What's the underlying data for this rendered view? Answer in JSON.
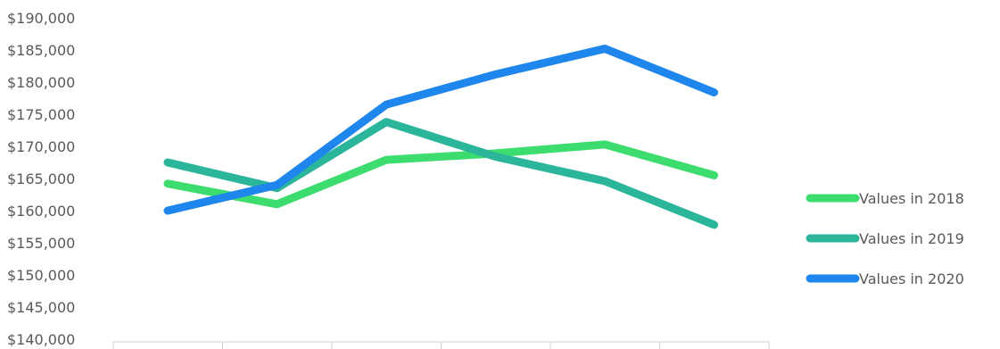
{
  "chart_data": {
    "type": "line",
    "title": "",
    "xlabel": "",
    "ylabel": "",
    "ylim": [
      140000,
      190000
    ],
    "ytick_step": 5000,
    "ytick_labels": [
      "$140,000",
      "$145,000",
      "$150,000",
      "$155,000",
      "$160,000",
      "$165,000",
      "$170,000",
      "$175,000",
      "$180,000",
      "$185,000",
      "$190,000"
    ],
    "categories": [
      "",
      "",
      "",
      "",
      "",
      ""
    ],
    "series": [
      {
        "name": "Values in 2018",
        "color": "#3ddc6e",
        "values": [
          164200,
          161000,
          167900,
          168900,
          170300,
          165500
        ]
      },
      {
        "name": "Values in 2019",
        "color": "#2bb59a",
        "values": [
          167500,
          163500,
          173800,
          168400,
          164600,
          157800
        ]
      },
      {
        "name": "Values in 2020",
        "color": "#1e86ec",
        "values": [
          160000,
          164000,
          176500,
          181200,
          185200,
          178400
        ]
      }
    ],
    "legend": "right",
    "grid": false
  }
}
